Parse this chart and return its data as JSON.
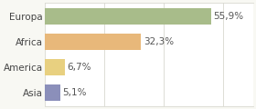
{
  "categories": [
    "Asia",
    "America",
    "Africa",
    "Europa"
  ],
  "values": [
    5.1,
    6.7,
    32.3,
    55.9
  ],
  "labels": [
    "5,1%",
    "6,7%",
    "32,3%",
    "55,9%"
  ],
  "bar_colors": [
    "#8b8fba",
    "#e8d080",
    "#e8b87a",
    "#a8bc8a"
  ],
  "background_color": "#f8f8f3",
  "plot_bg": "#ffffff",
  "xlim": [
    0,
    70
  ],
  "bar_height": 0.65,
  "label_fontsize": 7.5,
  "tick_fontsize": 7.5,
  "grid_color": "#d8d8d0",
  "text_color": "#555555",
  "ytick_color": "#444444"
}
